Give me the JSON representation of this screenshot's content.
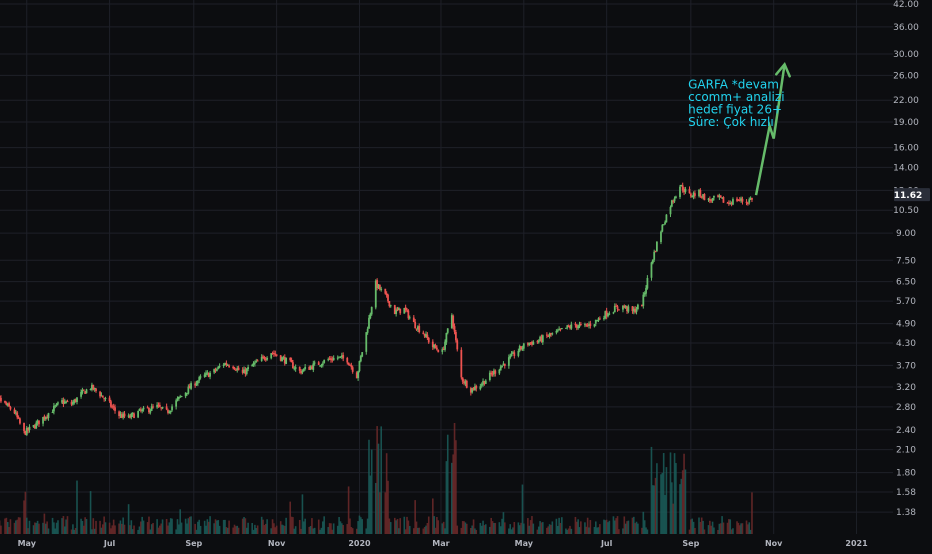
{
  "colors": {
    "background": "#0c0d10",
    "grid": "#1e2028",
    "up": "#26a69a",
    "down": "#ef5350",
    "candle_up": "#66bb6a",
    "arrow": "#66bb6a",
    "annotation_text": "#22d3ee",
    "axis_text": "#b2b5be",
    "price_badge": "#2a2e39",
    "volume_up": "#1b5e5a",
    "volume_down": "#6e2a2a"
  },
  "chart_data": {
    "type": "candlestick",
    "ticker": "GARFA",
    "yscale": "log",
    "ylim": [
      1.3,
      42.0
    ],
    "grid": true,
    "last_price_label": "11.62",
    "y_ticks": [
      "42.00",
      "36.00",
      "30.00",
      "26.00",
      "22.00",
      "19.00",
      "16.00",
      "14.00",
      "12.00",
      "10.50",
      "9.00",
      "7.50",
      "6.50",
      "5.70",
      "4.90",
      "4.30",
      "3.70",
      "3.20",
      "2.80",
      "2.40",
      "2.10",
      "1.80",
      "1.58",
      "1.38"
    ],
    "x_ticks": [
      "May",
      "Jul",
      "Sep",
      "Nov",
      "2020",
      "Mar",
      "May",
      "Jul",
      "Sep",
      "Nov",
      "2021"
    ],
    "x_tick_dates": [
      "2019-05-01",
      "2019-07-01",
      "2019-09-01",
      "2019-11-01",
      "2020-01-01",
      "2020-03-01",
      "2020-05-01",
      "2020-07-01",
      "2020-09-01",
      "2020-11-01",
      "2021-01-01"
    ],
    "x_range": [
      "2019-04-01",
      "2021-02-02"
    ],
    "price_path_weekly_close": [
      [
        "2019-04-01",
        2.95
      ],
      [
        "2019-04-08",
        3.0
      ],
      [
        "2019-04-15",
        2.85
      ],
      [
        "2019-04-22",
        2.7
      ],
      [
        "2019-04-29",
        2.35
      ],
      [
        "2019-05-06",
        2.45
      ],
      [
        "2019-05-13",
        2.6
      ],
      [
        "2019-05-20",
        2.75
      ],
      [
        "2019-05-27",
        2.9
      ],
      [
        "2019-06-03",
        2.85
      ],
      [
        "2019-06-10",
        3.05
      ],
      [
        "2019-06-17",
        3.2
      ],
      [
        "2019-06-24",
        3.05
      ],
      [
        "2019-07-01",
        2.85
      ],
      [
        "2019-07-08",
        2.65
      ],
      [
        "2019-07-15",
        2.6
      ],
      [
        "2019-07-22",
        2.7
      ],
      [
        "2019-07-29",
        2.75
      ],
      [
        "2019-08-05",
        2.8
      ],
      [
        "2019-08-12",
        2.7
      ],
      [
        "2019-08-19",
        2.9
      ],
      [
        "2019-08-26",
        3.1
      ],
      [
        "2019-09-02",
        3.3
      ],
      [
        "2019-09-09",
        3.45
      ],
      [
        "2019-09-16",
        3.55
      ],
      [
        "2019-09-23",
        3.75
      ],
      [
        "2019-09-30",
        3.7
      ],
      [
        "2019-10-07",
        3.5
      ],
      [
        "2019-10-14",
        3.7
      ],
      [
        "2019-10-21",
        3.85
      ],
      [
        "2019-10-28",
        4.05
      ],
      [
        "2019-11-04",
        3.9
      ],
      [
        "2019-11-11",
        3.75
      ],
      [
        "2019-11-18",
        3.55
      ],
      [
        "2019-11-25",
        3.65
      ],
      [
        "2019-12-02",
        3.75
      ],
      [
        "2019-12-09",
        3.85
      ],
      [
        "2019-12-16",
        3.9
      ],
      [
        "2019-12-23",
        3.85
      ],
      [
        "2019-12-30",
        3.45
      ],
      [
        "2020-01-06",
        4.6
      ],
      [
        "2020-01-13",
        6.4
      ],
      [
        "2020-01-20",
        5.9
      ],
      [
        "2020-01-27",
        5.3
      ],
      [
        "2020-02-03",
        5.4
      ],
      [
        "2020-02-10",
        4.9
      ],
      [
        "2020-02-17",
        4.6
      ],
      [
        "2020-02-24",
        4.2
      ],
      [
        "2020-03-02",
        4.05
      ],
      [
        "2020-03-09",
        5.2
      ],
      [
        "2020-03-16",
        3.4
      ],
      [
        "2020-03-23",
        3.15
      ],
      [
        "2020-03-30",
        3.25
      ],
      [
        "2020-04-06",
        3.45
      ],
      [
        "2020-04-13",
        3.65
      ],
      [
        "2020-04-20",
        3.85
      ],
      [
        "2020-04-27",
        4.1
      ],
      [
        "2020-05-04",
        4.3
      ],
      [
        "2020-05-11",
        4.35
      ],
      [
        "2020-05-18",
        4.5
      ],
      [
        "2020-05-25",
        4.6
      ],
      [
        "2020-06-01",
        4.75
      ],
      [
        "2020-06-08",
        4.85
      ],
      [
        "2020-06-15",
        4.8
      ],
      [
        "2020-06-22",
        4.95
      ],
      [
        "2020-06-29",
        5.2
      ],
      [
        "2020-07-06",
        5.4
      ],
      [
        "2020-07-13",
        5.5
      ],
      [
        "2020-07-20",
        5.3
      ],
      [
        "2020-07-27",
        5.6
      ],
      [
        "2020-08-03",
        7.4
      ],
      [
        "2020-08-10",
        9.2
      ],
      [
        "2020-08-17",
        10.9
      ],
      [
        "2020-08-24",
        12.4
      ],
      [
        "2020-08-31",
        11.6
      ],
      [
        "2020-09-07",
        11.8
      ],
      [
        "2020-09-14",
        11.2
      ],
      [
        "2020-09-21",
        11.4
      ],
      [
        "2020-09-28",
        11.0
      ],
      [
        "2020-10-05",
        11.3
      ],
      [
        "2020-10-12",
        11.1
      ],
      [
        "2020-10-19",
        11.62
      ]
    ],
    "projection_arrow": [
      [
        "2020-10-19",
        11.62
      ],
      [
        "2020-10-29",
        18.5
      ],
      [
        "2020-11-01",
        17.0
      ],
      [
        "2020-11-09",
        28.0
      ]
    ],
    "annotation": [
      "GARFA *devam",
      "ccomm+ analizi",
      "hedef fiyat 26+",
      "Süre: Çok hızlı"
    ]
  }
}
